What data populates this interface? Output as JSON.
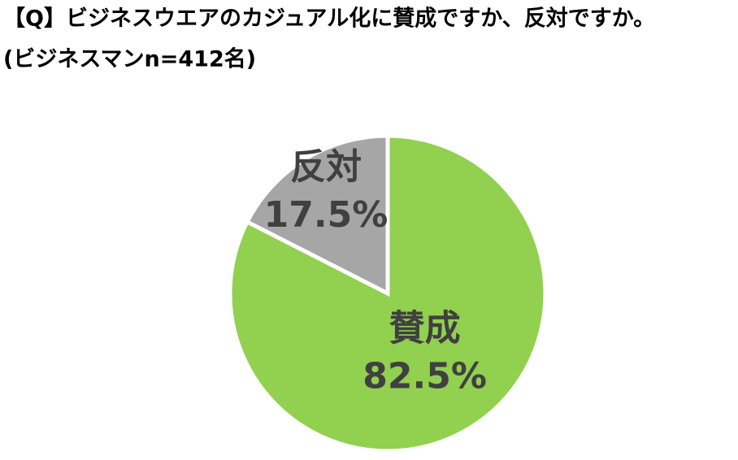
{
  "chart_data": {
    "type": "pie",
    "title": "【Q】ビジネスウエアのカジュアル化に賛成ですか、反対ですか。",
    "subtitle": "(ビジネスマンn=412名)",
    "categories": [
      "賛成",
      "反対"
    ],
    "values": [
      82.5,
      17.5
    ],
    "value_labels": [
      "82.5%",
      "17.5%"
    ],
    "colors": [
      "#92d050",
      "#a6a6a6"
    ]
  }
}
